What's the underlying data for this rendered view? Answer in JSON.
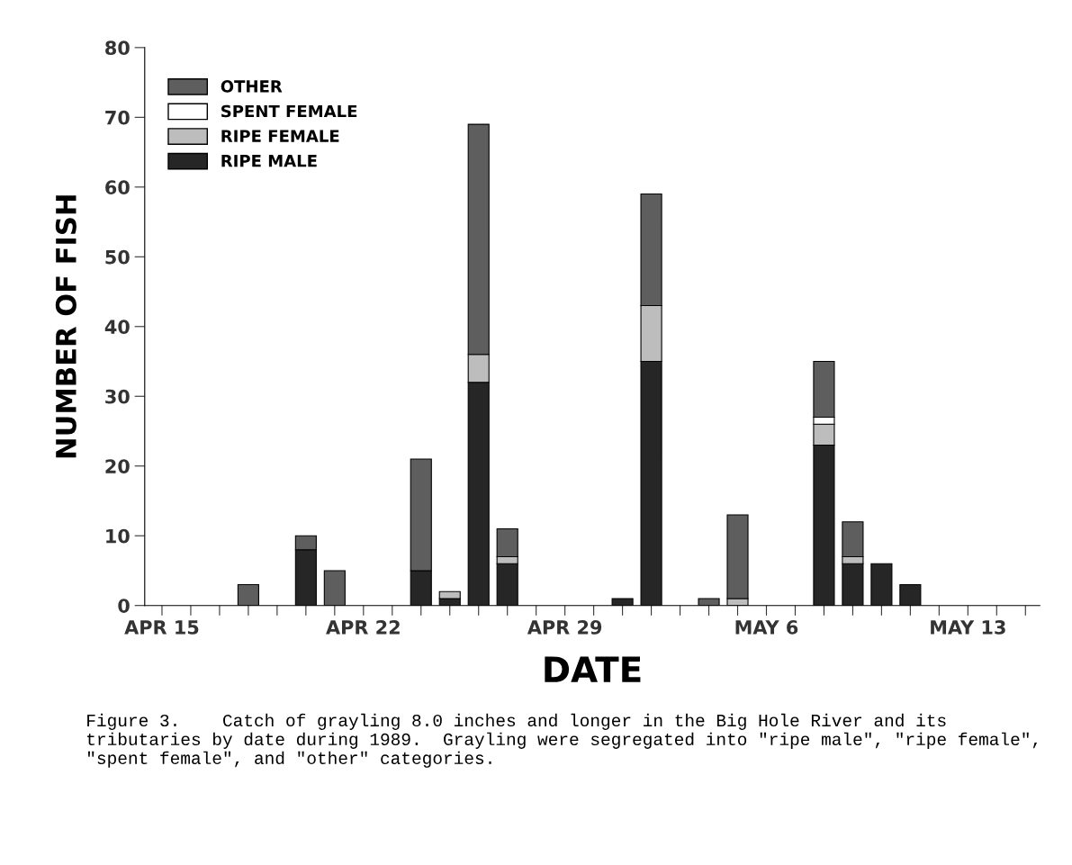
{
  "chart_data": {
    "type": "bar",
    "stacked": true,
    "xlabel": "DATE",
    "ylabel": "NUMBER OF FISH",
    "categories": [
      "APR 15",
      null,
      null,
      null,
      null,
      null,
      null,
      "APR 22",
      null,
      null,
      null,
      null,
      null,
      null,
      "APR 29",
      null,
      null,
      null,
      null,
      null,
      null,
      "MAY 6",
      null,
      null,
      null,
      null,
      null,
      null,
      "MAY 13",
      null,
      null
    ],
    "series": [
      {
        "name": "RIPE MALE",
        "color": "#262626",
        "values": [
          0,
          0,
          0,
          0,
          0,
          8,
          0,
          0,
          0,
          5,
          1,
          32,
          6,
          0,
          0,
          0,
          1,
          35,
          0,
          0,
          0,
          0,
          0,
          23,
          6,
          6,
          3,
          0,
          0,
          0,
          0
        ]
      },
      {
        "name": "RIPE FEMALE",
        "color": "#bdbdbd",
        "values": [
          0,
          0,
          0,
          0,
          0,
          0,
          0,
          0,
          0,
          0,
          1,
          4,
          1,
          0,
          0,
          0,
          0,
          8,
          0,
          0,
          1,
          0,
          0,
          3,
          1,
          0,
          0,
          0,
          0,
          0,
          0
        ]
      },
      {
        "name": "SPENT FEMALE",
        "color": "#ffffff",
        "values": [
          0,
          0,
          0,
          0,
          0,
          0,
          0,
          0,
          0,
          0,
          0,
          0,
          0,
          0,
          0,
          0,
          0,
          0,
          0,
          0,
          0,
          0,
          0,
          1,
          0,
          0,
          0,
          0,
          0,
          0,
          0
        ]
      },
      {
        "name": "OTHER",
        "color": "#5e5e5e",
        "values": [
          0,
          0,
          0,
          3,
          0,
          2,
          5,
          0,
          0,
          16,
          0,
          33,
          4,
          0,
          0,
          0,
          0,
          16,
          0,
          1,
          12,
          0,
          0,
          8,
          5,
          0,
          0,
          0,
          0,
          0,
          0
        ]
      }
    ],
    "ylim": [
      0,
      80
    ],
    "yticks": [
      0,
      10,
      20,
      30,
      40,
      50,
      60,
      70,
      80
    ],
    "grid": false,
    "legend": "top left",
    "annotations": [
      "Figure 3.    Catch of grayling 8.0 inches and longer in the Big Hole River and its tributaries by date during 1989.  Grayling were segregated into \"ripe male\", \"ripe female\", \"spent female\", and \"other\" categories."
    ]
  }
}
